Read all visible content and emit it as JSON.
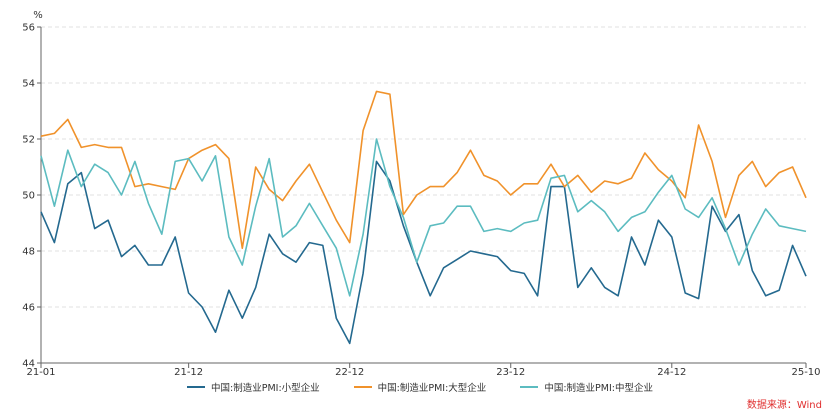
{
  "chart_data": {
    "type": "line",
    "title": "",
    "ylabel": "%",
    "xlabel": "",
    "ylim": [
      44,
      56
    ],
    "yticks": [
      "44",
      "46",
      "48",
      "50",
      "52",
      "54",
      "56"
    ],
    "x_start": "2021-01",
    "x_end": "2025-10",
    "xtick_labels": [
      {
        "label": "21-01",
        "index": 0
      },
      {
        "label": "21-12",
        "index": 11
      },
      {
        "label": "22-12",
        "index": 23
      },
      {
        "label": "23-12",
        "index": 35
      },
      {
        "label": "24-12",
        "index": 47
      },
      {
        "label": "25-10",
        "index": 57
      }
    ],
    "grid": "horizontal-dashed",
    "legend_position": "bottom",
    "series": [
      {
        "name": "中国:制造业PMI:小型企业",
        "color": "#24698f",
        "values": [
          49.4,
          48.3,
          50.4,
          50.8,
          48.8,
          49.1,
          47.8,
          48.2,
          47.5,
          47.5,
          48.5,
          46.5,
          46.0,
          45.1,
          46.6,
          45.6,
          46.7,
          48.6,
          47.9,
          47.6,
          48.3,
          48.2,
          45.6,
          44.7,
          47.2,
          51.2,
          50.5,
          48.9,
          47.6,
          46.4,
          47.4,
          47.7,
          48.0,
          47.9,
          47.8,
          47.3,
          47.2,
          46.4,
          50.3,
          50.3,
          46.7,
          47.4,
          46.7,
          46.4,
          48.5,
          47.5,
          49.1,
          48.5,
          46.5,
          46.3,
          49.6,
          48.7,
          49.3,
          47.3,
          46.4,
          46.6,
          48.2,
          47.1
        ]
      },
      {
        "name": "中国:制造业PMI:大型企业",
        "color": "#f0922b",
        "values": [
          52.1,
          52.2,
          52.7,
          51.7,
          51.8,
          51.7,
          51.7,
          50.3,
          50.4,
          50.3,
          50.2,
          51.3,
          51.6,
          51.8,
          51.3,
          48.1,
          51.0,
          50.2,
          49.8,
          50.5,
          51.1,
          50.1,
          49.1,
          48.3,
          52.3,
          53.7,
          53.6,
          49.3,
          50.0,
          50.3,
          50.3,
          50.8,
          51.6,
          50.7,
          50.5,
          50.0,
          50.4,
          50.4,
          51.1,
          50.3,
          50.7,
          50.1,
          50.5,
          50.4,
          50.6,
          51.5,
          50.9,
          50.5,
          49.9,
          52.5,
          51.2,
          49.2,
          50.7,
          51.2,
          50.3,
          50.8,
          51.0,
          49.9
        ]
      },
      {
        "name": "中国:制造业PMI:中型企业",
        "color": "#5cbcc0",
        "values": [
          51.4,
          49.6,
          51.6,
          50.3,
          51.1,
          50.8,
          50.0,
          51.2,
          49.7,
          48.6,
          51.2,
          51.3,
          50.5,
          51.4,
          48.5,
          47.5,
          49.6,
          51.3,
          48.5,
          48.9,
          49.7,
          48.9,
          48.1,
          46.4,
          48.6,
          52.0,
          50.3,
          49.2,
          47.6,
          48.9,
          49.0,
          49.6,
          49.6,
          48.7,
          48.8,
          48.7,
          49.0,
          49.1,
          50.6,
          50.7,
          49.4,
          49.8,
          49.4,
          48.7,
          49.2,
          49.4,
          50.1,
          50.7,
          49.5,
          49.2,
          49.9,
          48.8,
          47.5,
          48.6,
          49.5,
          48.9,
          48.8,
          48.7
        ]
      }
    ]
  },
  "source": "数据来源：Wind"
}
